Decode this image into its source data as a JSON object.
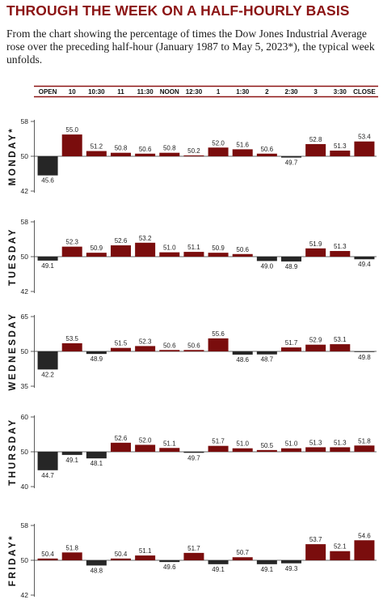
{
  "title": "THROUGH THE WEEK ON A HALF-HOURLY BASIS",
  "subtitle": "From the chart showing the percentage of times the Dow Jones Industrial Average rose over the preceding half-hour (January 1987 to May 5, 2023*), the typical week unfolds.",
  "colors": {
    "up": "#7a0d0d",
    "down": "#262626",
    "rule": "#8c1414",
    "title": "#8c1414"
  },
  "chart_data": {
    "type": "bar",
    "categories": [
      "OPEN",
      "10",
      "10:30",
      "11",
      "11:30",
      "NOON",
      "12:30",
      "1",
      "1:30",
      "2",
      "2:30",
      "3",
      "3:30",
      "CLOSE"
    ],
    "baseline": 50,
    "panels": [
      {
        "name": "MONDAY*",
        "ylim": [
          42,
          58
        ],
        "ticks": [
          58,
          50,
          42
        ],
        "values": [
          45.6,
          55.0,
          51.2,
          50.8,
          50.6,
          50.8,
          50.2,
          52.0,
          51.6,
          50.6,
          49.7,
          52.8,
          51.3,
          53.4
        ]
      },
      {
        "name": "TUESDAY",
        "ylim": [
          42,
          58
        ],
        "ticks": [
          58,
          50,
          42
        ],
        "values": [
          49.1,
          52.3,
          50.9,
          52.6,
          53.2,
          51.0,
          51.1,
          50.9,
          50.6,
          49.0,
          48.9,
          51.9,
          51.3,
          49.4
        ]
      },
      {
        "name": "WEDNESDAY",
        "ylim": [
          35,
          65
        ],
        "ticks": [
          65,
          50,
          35
        ],
        "values": [
          42.2,
          53.5,
          48.9,
          51.5,
          52.3,
          50.6,
          50.6,
          55.6,
          48.6,
          48.7,
          51.7,
          52.9,
          53.1,
          49.8
        ]
      },
      {
        "name": "THURSDAY",
        "ylim": [
          40,
          60
        ],
        "ticks": [
          60,
          50,
          40
        ],
        "values": [
          44.7,
          49.1,
          48.1,
          52.6,
          52.0,
          51.1,
          49.7,
          51.7,
          51.0,
          50.5,
          51.0,
          51.3,
          51.3,
          51.8
        ]
      },
      {
        "name": "FRIDAY*",
        "ylim": [
          42,
          58
        ],
        "ticks": [
          58,
          50,
          42
        ],
        "values": [
          50.4,
          51.8,
          48.8,
          50.4,
          51.1,
          49.6,
          51.7,
          49.1,
          50.7,
          49.1,
          49.3,
          53.7,
          52.1,
          54.6
        ]
      }
    ]
  }
}
